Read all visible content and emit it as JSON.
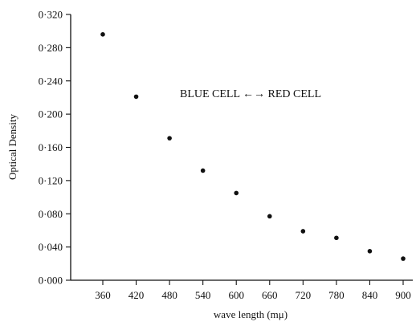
{
  "chart_data": {
    "type": "scatter",
    "title": "",
    "xlabel": "wave length (mμ)",
    "ylabel": "Optical Density",
    "annotation": "BLUE CELL ←→ RED CELL",
    "xlim": [
      300,
      900
    ],
    "ylim": [
      0.0,
      0.32
    ],
    "x_ticks": [
      360,
      420,
      480,
      540,
      600,
      660,
      720,
      780,
      840,
      900
    ],
    "x_tick_labels": [
      "360",
      "420",
      "480",
      "540",
      "600",
      "660",
      "720",
      "780",
      "840",
      "900"
    ],
    "y_ticks": [
      0.0,
      0.04,
      0.08,
      0.12,
      0.16,
      0.2,
      0.24,
      0.28,
      0.32
    ],
    "y_tick_labels": [
      "0·000",
      "0·040",
      "0·080",
      "0·120",
      "0·160",
      "0·200",
      "0·240",
      "0·280",
      "0·320"
    ],
    "grid": false,
    "series": [
      {
        "x": [
          360,
          420,
          480,
          540,
          600,
          660,
          720,
          780,
          840,
          900
        ],
        "y": [
          0.296,
          0.221,
          0.171,
          0.132,
          0.105,
          0.077,
          0.059,
          0.051,
          0.035,
          0.026
        ]
      }
    ]
  }
}
